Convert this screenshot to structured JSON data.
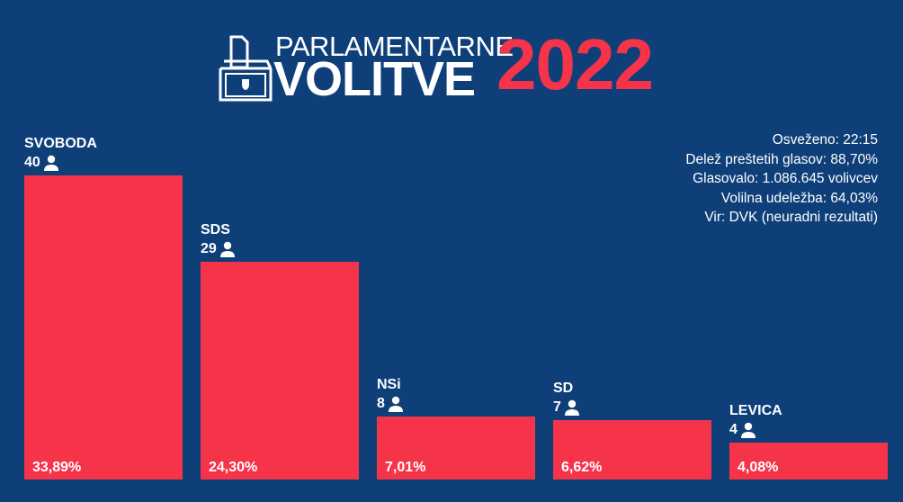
{
  "header": {
    "line1": "PARLAMENTARNE",
    "line2": "VOLITVE",
    "year": "2022",
    "logo_icon": "ballot-box-icon"
  },
  "info": {
    "refreshed": "Osveženo: 22:15",
    "counted": "Delež preštetih glasov: 88,70%",
    "voted": "Glasovalo: 1.086.645 volivcev",
    "turnout": "Volilna udeležba: 64,03%",
    "source": "Vir: DVK (neuradni rezultati)"
  },
  "colors": {
    "background": "#0f3f79",
    "bar": "#f5344a"
  },
  "chart_data": {
    "type": "bar",
    "categories": [
      "SVOBODA",
      "SDS",
      "NSi",
      "SD",
      "LEVICA"
    ],
    "values": [
      33.89,
      24.3,
      7.01,
      6.62,
      4.08
    ],
    "value_labels": [
      "33,89%",
      "24,30%",
      "7,01%",
      "6,62%",
      "4,08%"
    ],
    "seats": [
      "40",
      "29",
      "8",
      "7",
      "4"
    ],
    "seat_icon": "person-icon",
    "ylim": [
      0,
      33.89
    ]
  }
}
